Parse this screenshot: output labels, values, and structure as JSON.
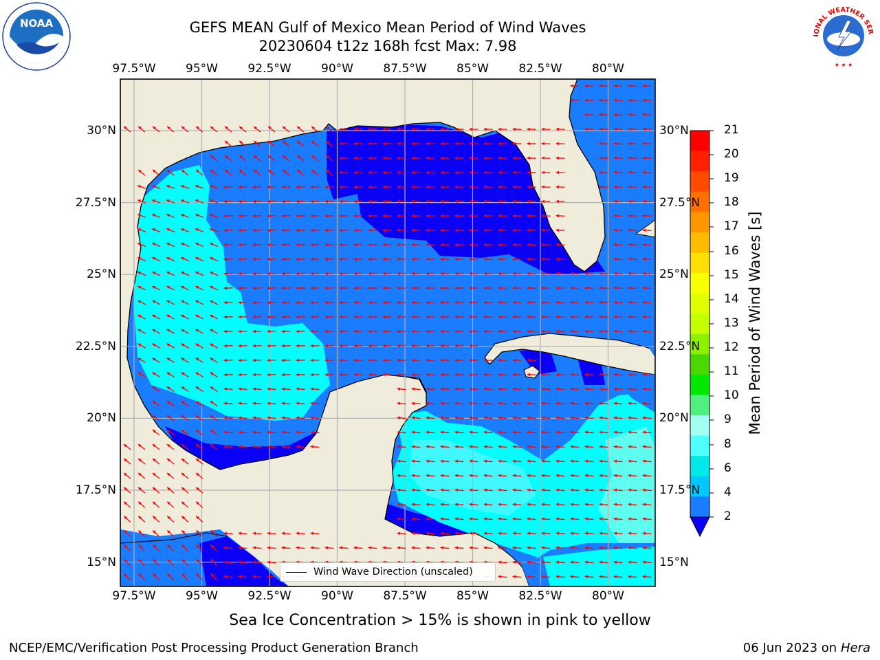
{
  "title_line1": "GEFS MEAN Gulf of Mexico Mean Period of Wind Waves",
  "title_line2": "20230604 t12z 168h fcst   Max: 7.98",
  "lon_labels": [
    "97.5°W",
    "95°W",
    "92.5°W",
    "90°W",
    "87.5°W",
    "85°W",
    "82.5°W",
    "80°W"
  ],
  "lat_labels": [
    "30°N",
    "27.5°N",
    "25°N",
    "22.5°N",
    "20°N",
    "17.5°N",
    "15°N"
  ],
  "colorbar": {
    "label": "Mean Period of Wind Waves [s]",
    "ticks": [
      "21",
      "20",
      "19",
      "18",
      "17",
      "16",
      "15",
      "14",
      "13",
      "12",
      "11",
      "10",
      "9",
      "8",
      "6",
      "4",
      "2"
    ],
    "colors": [
      "#ff0000",
      "#ff2000",
      "#ff4a00",
      "#ff7000",
      "#ff9600",
      "#ffbb00",
      "#ffe000",
      "#f8ff00",
      "#e0ff00",
      "#c4ff00",
      "#8cf000",
      "#4ad800",
      "#00e800",
      "#50f080",
      "#a0fff0",
      "#50ffff",
      "#00e8e8",
      "#00c8ff",
      "#1a7cff"
    ]
  },
  "legend_label": "Wind Wave Direction (unscaled)",
  "ice_note": "Sea Ice Concentration > 15% is shown in pink to yellow",
  "footer_left": "NCEP/EMC/Verification Post Processing Product Generation Branch",
  "footer_date": "06 Jun 2023 on",
  "footer_machine": "Hera",
  "logos": {
    "left": "NOAA",
    "right": "NATIONAL WEATHER SERVICE"
  },
  "map_colors": {
    "land": "#efecdc",
    "deep_blue": "#0a00f5",
    "blue": "#1a7cff",
    "cyan": "#00ffff",
    "light_cyan": "#5ffcf0",
    "arrow": "#ff0000",
    "grid": "#b0b0b0"
  }
}
